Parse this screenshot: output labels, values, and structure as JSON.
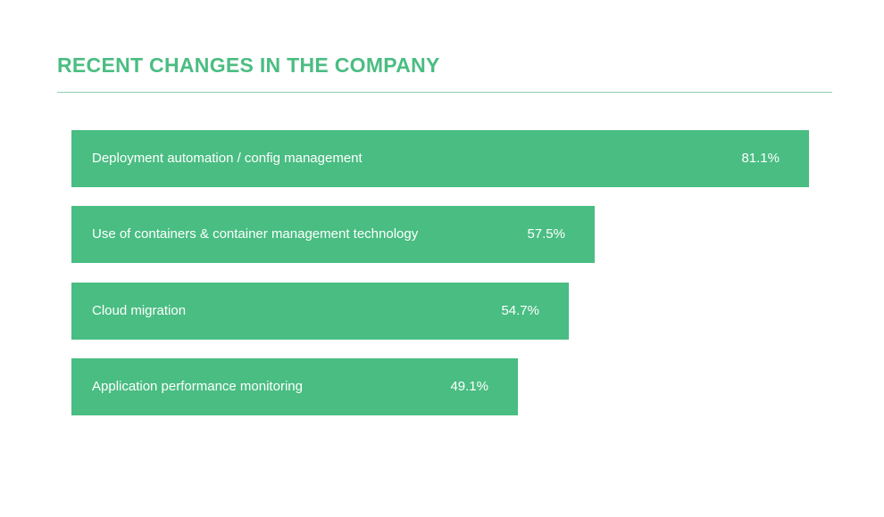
{
  "chart_data": {
    "type": "bar",
    "orientation": "horizontal",
    "title": "RECENT CHANGES IN THE COMPANY",
    "categories": [
      "Deployment automation / config management",
      "Use of containers & container management technology",
      "Cloud migration",
      "Application performance monitoring"
    ],
    "values": [
      81.1,
      57.5,
      54.7,
      49.1
    ],
    "value_labels": [
      "81.1%",
      "57.5%",
      "54.7%",
      "49.1%"
    ],
    "unit": "%",
    "xlim": [
      0,
      81.1
    ],
    "grid": false,
    "legend": "none",
    "colors": {
      "title": "#4bbd82",
      "bar": "#49bd82",
      "bar_text": "#ffffff",
      "rule": "#8fcfb2"
    }
  }
}
